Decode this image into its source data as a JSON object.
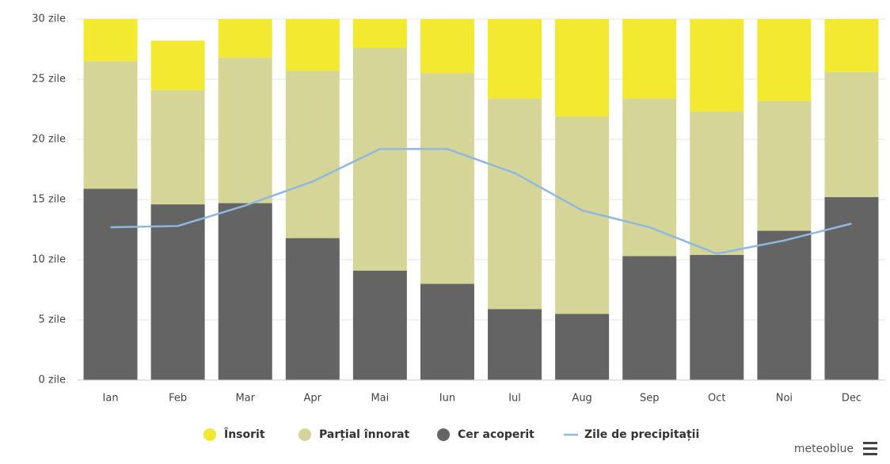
{
  "chart_data": {
    "type": "stacked_bar_line",
    "categories": [
      "Ian",
      "Feb",
      "Mar",
      "Apr",
      "Mai",
      "Iun",
      "Iul",
      "Aug",
      "Sep",
      "Oct",
      "Noi",
      "Dec"
    ],
    "series": [
      {
        "name": "Cer acoperit",
        "color": "#646464",
        "values": [
          15.9,
          14.6,
          14.7,
          11.8,
          9.1,
          8.0,
          5.9,
          5.5,
          10.3,
          10.4,
          12.4,
          15.2
        ]
      },
      {
        "name": "Parțial înnorat",
        "color": "#d6d598",
        "values": [
          10.6,
          9.5,
          12.1,
          13.9,
          18.5,
          17.5,
          17.5,
          16.4,
          13.1,
          11.9,
          10.8,
          10.4
        ]
      },
      {
        "name": "Însorit",
        "color": "#f2e930",
        "values": [
          3.5,
          4.1,
          3.2,
          4.3,
          2.4,
          4.5,
          6.6,
          8.1,
          6.6,
          7.7,
          6.8,
          4.4
        ]
      },
      {
        "name": "Zile de precipitații",
        "type": "line",
        "color": "#8fb8e0",
        "values": [
          12.7,
          12.8,
          14.5,
          16.5,
          19.2,
          19.2,
          17.2,
          14.1,
          12.7,
          10.5,
          11.6,
          13.0
        ]
      }
    ],
    "legend_order": [
      2,
      1,
      0,
      3
    ],
    "ylim": [
      0,
      30
    ],
    "yticks": [
      {
        "value": 0,
        "label": "0 zile"
      },
      {
        "value": 5,
        "label": "5 zile"
      },
      {
        "value": 10,
        "label": "10 zile"
      },
      {
        "value": 15,
        "label": "15 zile"
      },
      {
        "value": 20,
        "label": "20 zile"
      },
      {
        "value": 25,
        "label": "25 zile"
      },
      {
        "value": 30,
        "label": "30 zile"
      }
    ],
    "grid": true,
    "credit": "meteoblue"
  }
}
